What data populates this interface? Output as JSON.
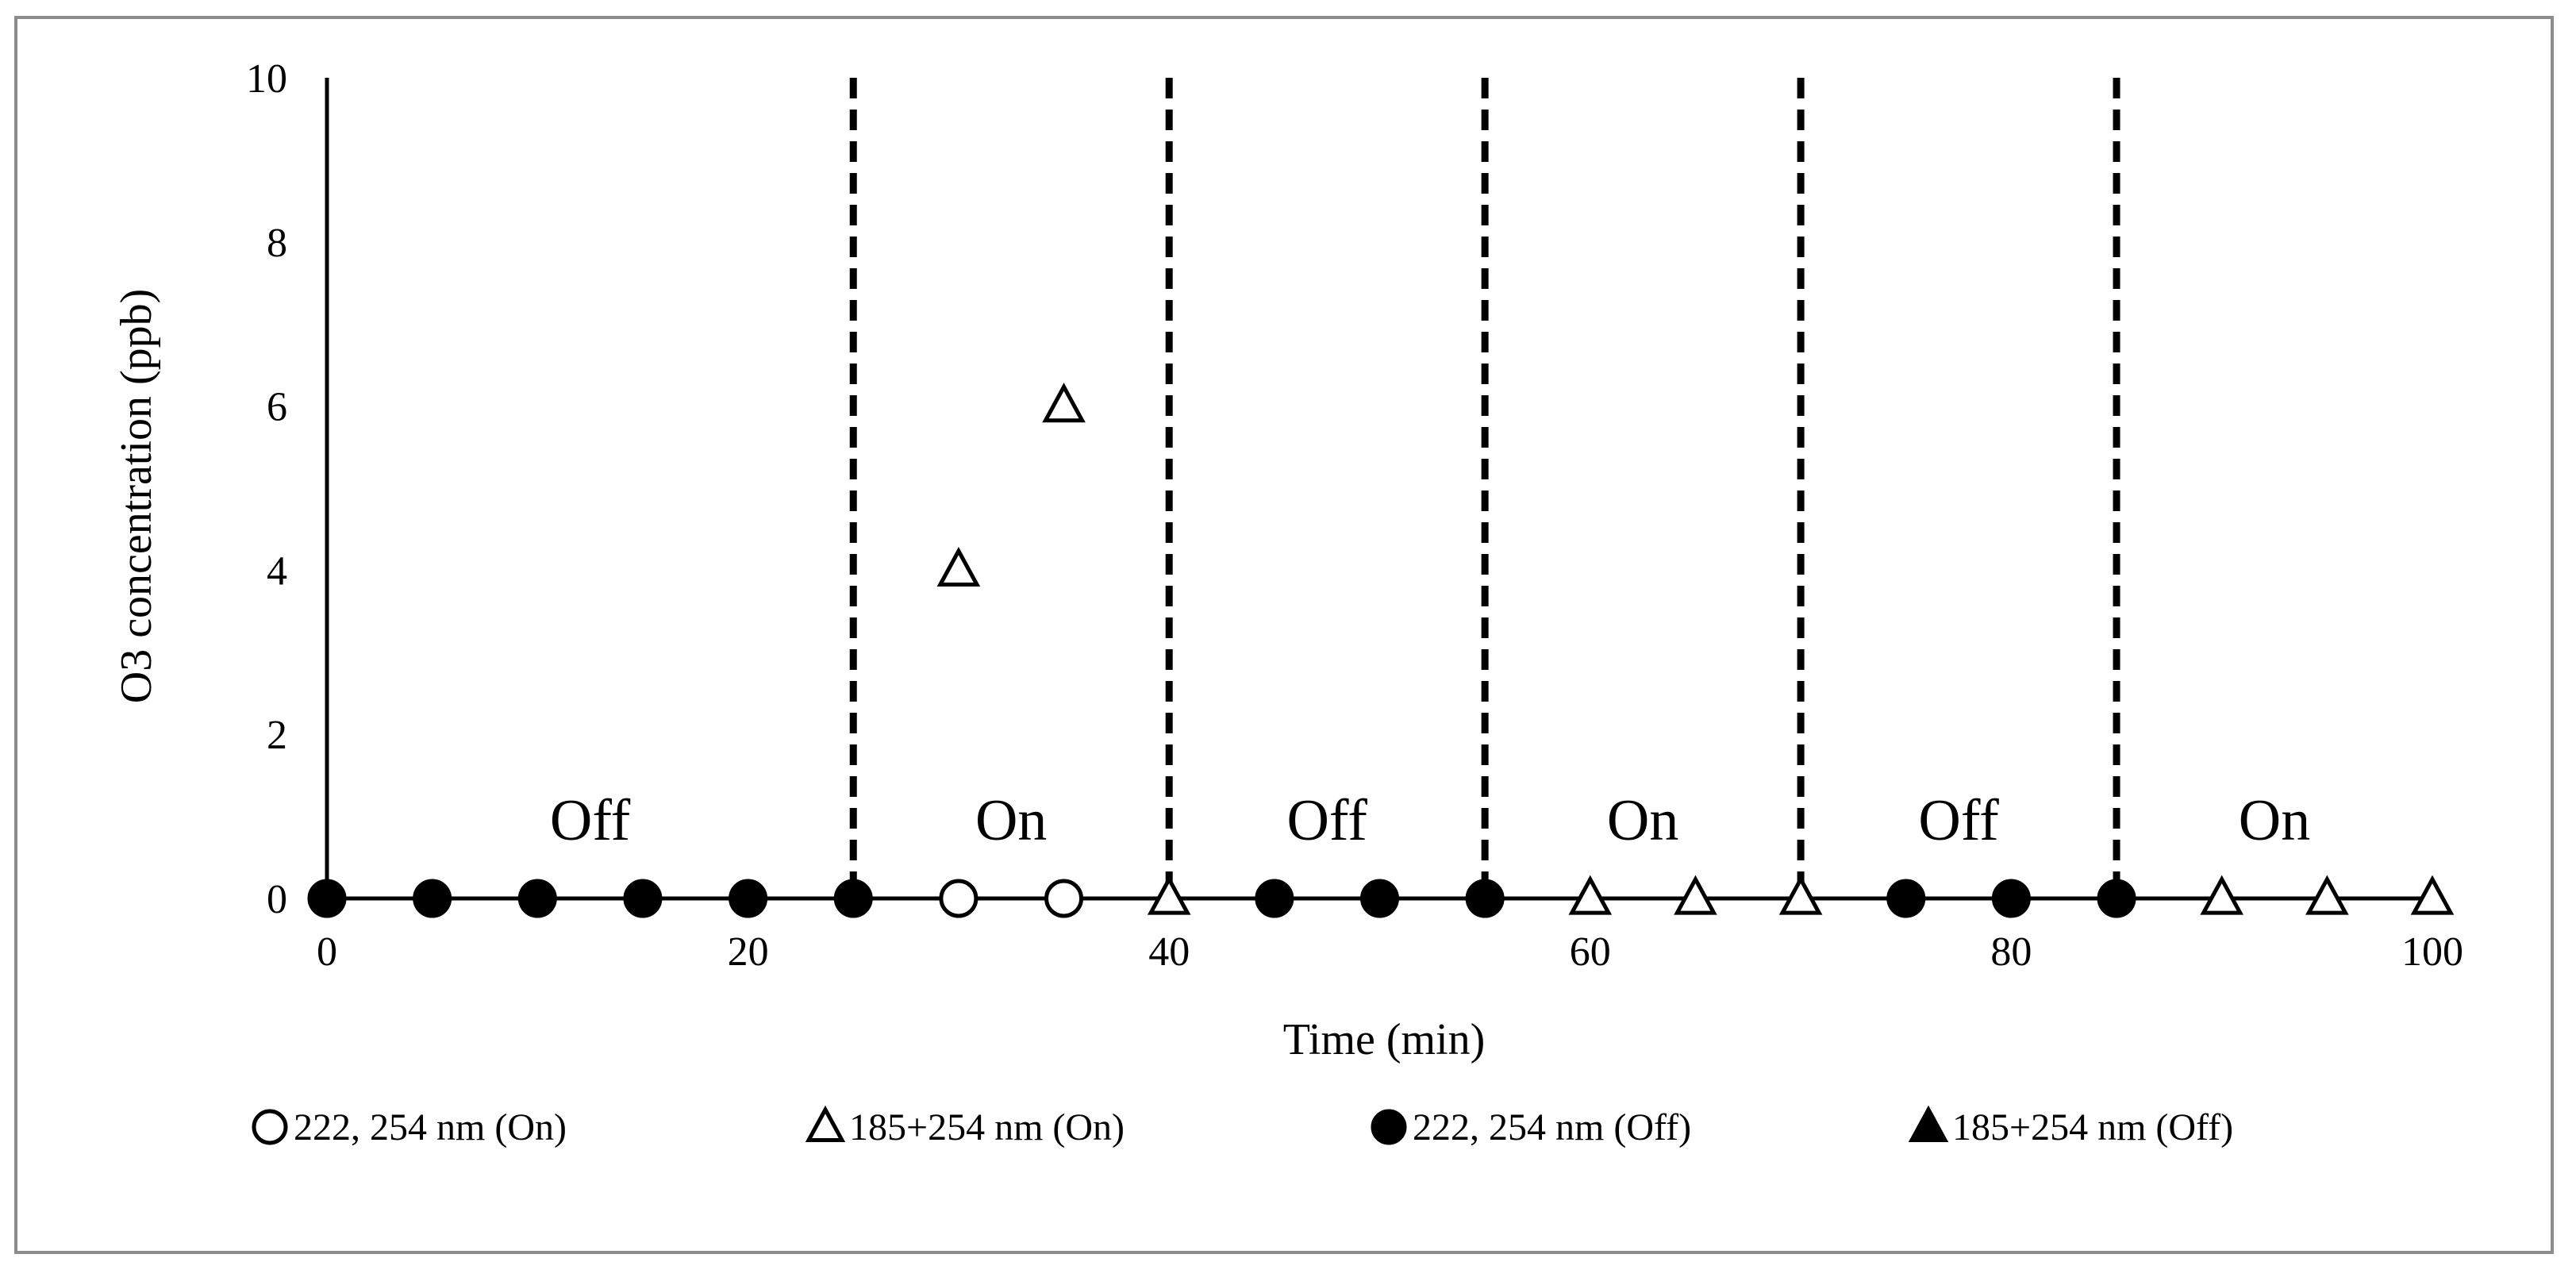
{
  "chart_data": {
    "type": "scatter",
    "title": "",
    "xlabel": "Time (min)",
    "ylabel": "O3 concentration (ppb)",
    "xlim": [
      0,
      100
    ],
    "ylim": [
      0,
      10
    ],
    "xticks": [
      0,
      20,
      40,
      60,
      80,
      100
    ],
    "yticks": [
      0,
      2,
      4,
      6,
      8,
      10
    ],
    "grid": false,
    "legend_position": "bottom",
    "phase_boundaries": [
      25,
      40,
      55,
      70,
      85
    ],
    "regions": [
      {
        "label": "Off",
        "x": 12.5
      },
      {
        "label": "On",
        "x": 32.5
      },
      {
        "label": "Off",
        "x": 47.5
      },
      {
        "label": "On",
        "x": 62.5
      },
      {
        "label": "Off",
        "x": 77.5
      },
      {
        "label": "On",
        "x": 92.5
      }
    ],
    "series": [
      {
        "name": "222, 254 nm (On)",
        "marker": "circle-open",
        "points": [
          [
            30,
            0
          ],
          [
            35,
            0
          ]
        ]
      },
      {
        "name": "185+254 nm (On)",
        "marker": "triangle-open",
        "points": [
          [
            30,
            4
          ],
          [
            35,
            6
          ],
          [
            40,
            0
          ],
          [
            60,
            0
          ],
          [
            65,
            0
          ],
          [
            70,
            0
          ],
          [
            90,
            0
          ],
          [
            95,
            0
          ],
          [
            100,
            0
          ]
        ]
      },
      {
        "name": "222, 254 nm (Off)",
        "marker": "circle-filled",
        "points": [
          [
            0,
            0
          ],
          [
            5,
            0
          ],
          [
            10,
            0
          ],
          [
            15,
            0
          ],
          [
            20,
            0
          ],
          [
            25,
            0
          ],
          [
            45,
            0
          ],
          [
            50,
            0
          ],
          [
            55,
            0
          ],
          [
            75,
            0
          ],
          [
            80,
            0
          ],
          [
            85,
            0
          ]
        ]
      },
      {
        "name": "185+254 nm (Off)",
        "marker": "triangle-filled",
        "points": []
      }
    ]
  }
}
